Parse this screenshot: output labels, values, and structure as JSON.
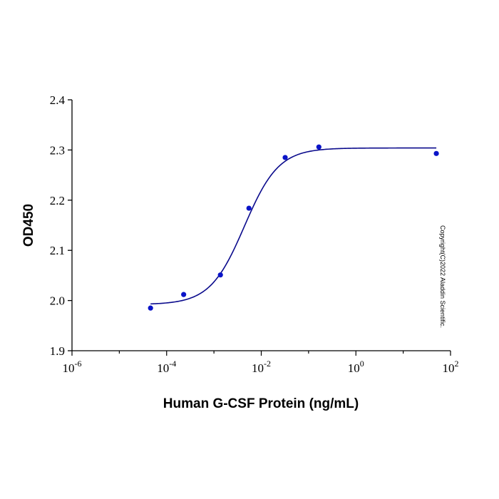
{
  "chart_data": {
    "type": "scatter",
    "title": "",
    "xlabel": "Human G-CSF Protein (ng/mL)",
    "ylabel": "OD450",
    "x_scale": "log10",
    "xlim": [
      1e-06,
      100
    ],
    "ylim": [
      1.9,
      2.4
    ],
    "x_ticks": [
      {
        "base": "10",
        "exp": "-6"
      },
      {
        "base": "10",
        "exp": "-4"
      },
      {
        "base": "10",
        "exp": "-2"
      },
      {
        "base": "10",
        "exp": "0"
      },
      {
        "base": "10",
        "exp": "2"
      }
    ],
    "y_ticks": [
      "1.9",
      "2.0",
      "2.1",
      "2.2",
      "2.3",
      "2.4"
    ],
    "grid": false,
    "legend": "none",
    "point_color": "#0a14c8",
    "curve_color": "#0a0a8c",
    "points": [
      {
        "x": 4.57e-05,
        "y": 1.985
      },
      {
        "x": 0.000229,
        "y": 2.012
      },
      {
        "x": 0.00137,
        "y": 2.051
      },
      {
        "x": 0.00549,
        "y": 2.184
      },
      {
        "x": 0.032,
        "y": 2.285
      },
      {
        "x": 0.165,
        "y": 2.306
      },
      {
        "x": 50.1,
        "y": 2.293
      }
    ],
    "fit": {
      "model": "4PL",
      "bottom": 1.992,
      "top": 2.304,
      "ec50": 0.0044,
      "hill": 1.2,
      "x_from": 4.57e-05,
      "x_to": 50.1
    },
    "annotation": "Copyright(C)2022 Aladdin Scientific."
  }
}
